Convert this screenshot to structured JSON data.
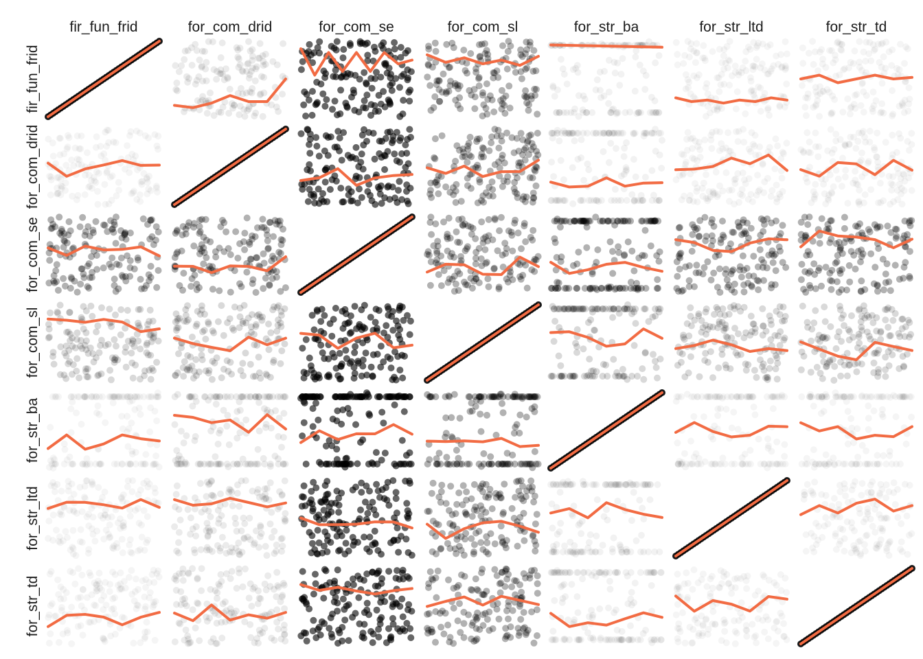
{
  "chart_data": {
    "type": "scatter",
    "variables": [
      "fir_fun_frid",
      "for_com_drid",
      "for_com_se",
      "for_com_sl",
      "for_str_ba",
      "for_str_ltd",
      "for_str_td"
    ],
    "grid": false,
    "axes_shown": false,
    "point_color": "#000000",
    "smooth_line_color": "#F26B43",
    "confidence_band_color": "#BDBDBD",
    "panels": [
      {
        "row": "fir_fun_frid",
        "col": "fir_fun_frid",
        "smooth_y": [
          0.0,
          0.2,
          0.4,
          0.6,
          0.8,
          1.0
        ]
      },
      {
        "row": "fir_fun_frid",
        "col": "for_com_drid",
        "smooth_y": [
          0.15,
          0.12,
          0.18,
          0.28,
          0.2,
          0.2,
          0.5
        ]
      },
      {
        "row": "fir_fun_frid",
        "col": "for_com_se",
        "smooth_y": [
          0.9,
          0.55,
          0.85,
          0.6,
          0.85,
          0.6,
          0.85,
          0.7,
          0.75
        ]
      },
      {
        "row": "fir_fun_frid",
        "col": "for_com_sl",
        "smooth_y": [
          0.82,
          0.72,
          0.78,
          0.7,
          0.75,
          0.68,
          0.8
        ]
      },
      {
        "row": "fir_fun_frid",
        "col": "for_str_ba",
        "smooth_y": [
          0.95,
          0.92
        ]
      },
      {
        "row": "fir_fun_frid",
        "col": "for_str_ltd",
        "smooth_y": [
          0.25,
          0.2,
          0.22,
          0.18,
          0.22,
          0.2,
          0.25,
          0.22
        ]
      },
      {
        "row": "fir_fun_frid",
        "col": "for_str_td",
        "smooth_y": [
          0.5,
          0.55,
          0.45,
          0.5,
          0.55,
          0.5,
          0.52
        ]
      }
    ]
  }
}
